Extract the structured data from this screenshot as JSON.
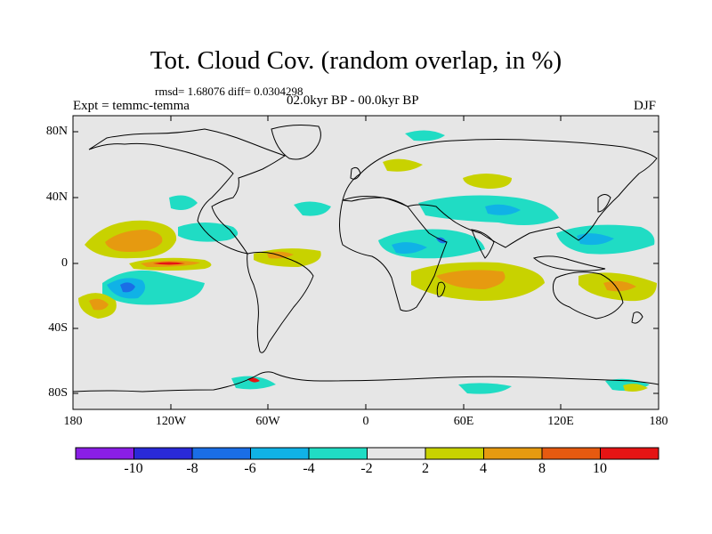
{
  "title": "Tot. Cloud Cov. (random overlap, in %)",
  "stats": "rmsd= 1.68076 diff= 0.0304298",
  "experiment": "Expt = temmc-temma",
  "period": "02.0kyr BP - 00.0kyr BP",
  "season": "DJF",
  "map_axes": {
    "y_ticks": [
      "80N",
      "40N",
      "0",
      "40S",
      "80S"
    ],
    "x_ticks": [
      "180",
      "120W",
      "60W",
      "0",
      "60E",
      "120E",
      "180"
    ]
  },
  "colorbar": {
    "labels": [
      "-10",
      "-8",
      "-6",
      "-4",
      "-2",
      "2",
      "4",
      "8",
      "10"
    ],
    "colors": [
      "#8a1ee6",
      "#2a2ad8",
      "#1a6ee6",
      "#10b2e6",
      "#20dcc4",
      "#e6e6e6",
      "#c8d200",
      "#e69a10",
      "#e65a10",
      "#e61414"
    ]
  }
}
